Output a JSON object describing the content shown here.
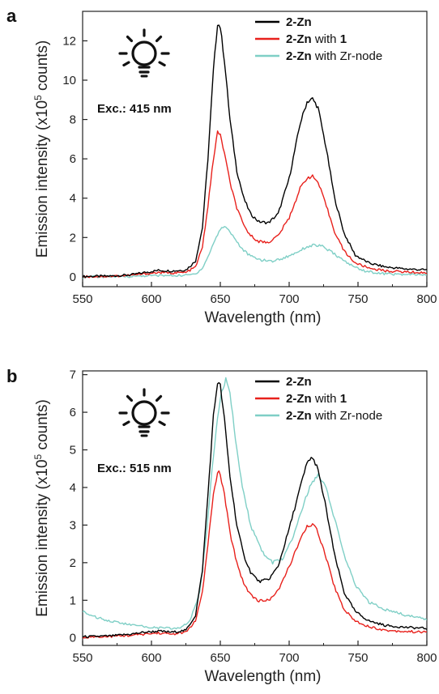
{
  "chart_data": [
    {
      "panel": "a",
      "type": "line",
      "annotation": "Exc.: 415 nm",
      "icon": "light-bulb-icon",
      "xlabel": "Wavelength (nm)",
      "ylabel_prefix": "Emission intensity (x10",
      "ylabel_sup": "5",
      "ylabel_suffix": " counts)",
      "xlim": [
        550,
        800
      ],
      "ylim": [
        -0.5,
        13.5
      ],
      "xticks": [
        550,
        600,
        650,
        700,
        750,
        800
      ],
      "yticks": [
        0,
        2,
        4,
        6,
        8,
        10,
        12
      ],
      "legend_position": "top-right",
      "series": [
        {
          "label_bold": "2-Zn",
          "label_rest": "",
          "label_bold2": "",
          "color": "#000000",
          "points": [
            [
              550,
              0.02
            ],
            [
              570,
              0.04
            ],
            [
              585,
              0.1
            ],
            [
              595,
              0.22
            ],
            [
              605,
              0.33
            ],
            [
              615,
              0.3
            ],
            [
              625,
              0.35
            ],
            [
              632,
              0.8
            ],
            [
              637,
              2.5
            ],
            [
              641,
              6.0
            ],
            [
              645,
              10.5
            ],
            [
              648,
              12.9
            ],
            [
              650,
              12.7
            ],
            [
              653,
              11.0
            ],
            [
              657,
              8.0
            ],
            [
              662,
              5.4
            ],
            [
              667,
              4.0
            ],
            [
              672,
              3.2
            ],
            [
              678,
              2.8
            ],
            [
              685,
              2.75
            ],
            [
              692,
              3.2
            ],
            [
              700,
              5.0
            ],
            [
              708,
              7.8
            ],
            [
              713,
              8.9
            ],
            [
              717,
              9.05
            ],
            [
              721,
              8.6
            ],
            [
              727,
              6.5
            ],
            [
              733,
              4.0
            ],
            [
              740,
              2.2
            ],
            [
              748,
              1.1
            ],
            [
              758,
              0.7
            ],
            [
              770,
              0.5
            ],
            [
              785,
              0.4
            ],
            [
              800,
              0.35
            ]
          ]
        },
        {
          "label_bold": "2-Zn",
          "label_rest": " with ",
          "label_bold2": "1",
          "color": "#e8211c",
          "points": [
            [
              550,
              0.01
            ],
            [
              570,
              0.03
            ],
            [
              585,
              0.08
            ],
            [
              595,
              0.15
            ],
            [
              605,
              0.22
            ],
            [
              615,
              0.2
            ],
            [
              625,
              0.22
            ],
            [
              632,
              0.5
            ],
            [
              637,
              1.5
            ],
            [
              641,
              3.6
            ],
            [
              645,
              6.0
            ],
            [
              648,
              7.35
            ],
            [
              650,
              7.2
            ],
            [
              653,
              6.3
            ],
            [
              657,
              4.8
            ],
            [
              662,
              3.5
            ],
            [
              667,
              2.6
            ],
            [
              672,
              2.1
            ],
            [
              678,
              1.8
            ],
            [
              685,
              1.75
            ],
            [
              692,
              2.1
            ],
            [
              700,
              3.0
            ],
            [
              708,
              4.5
            ],
            [
              713,
              5.05
            ],
            [
              717,
              5.1
            ],
            [
              721,
              4.8
            ],
            [
              727,
              3.6
            ],
            [
              733,
              2.3
            ],
            [
              740,
              1.3
            ],
            [
              748,
              0.7
            ],
            [
              758,
              0.45
            ],
            [
              770,
              0.3
            ],
            [
              785,
              0.25
            ],
            [
              800,
              0.2
            ]
          ]
        },
        {
          "label_bold": "2-Zn",
          "label_rest": " with Zr-node",
          "label_bold2": "",
          "color": "#7fcfc6",
          "points": [
            [
              550,
              0.0
            ],
            [
              570,
              0.01
            ],
            [
              585,
              0.02
            ],
            [
              595,
              0.05
            ],
            [
              605,
              0.07
            ],
            [
              615,
              0.06
            ],
            [
              625,
              0.08
            ],
            [
              632,
              0.15
            ],
            [
              637,
              0.45
            ],
            [
              641,
              1.0
            ],
            [
              645,
              1.7
            ],
            [
              649,
              2.3
            ],
            [
              652,
              2.55
            ],
            [
              655,
              2.5
            ],
            [
              660,
              2.0
            ],
            [
              666,
              1.4
            ],
            [
              672,
              1.05
            ],
            [
              680,
              0.85
            ],
            [
              688,
              0.8
            ],
            [
              696,
              0.95
            ],
            [
              704,
              1.2
            ],
            [
              712,
              1.5
            ],
            [
              718,
              1.62
            ],
            [
              724,
              1.55
            ],
            [
              731,
              1.25
            ],
            [
              738,
              0.9
            ],
            [
              746,
              0.55
            ],
            [
              755,
              0.3
            ],
            [
              765,
              0.18
            ],
            [
              780,
              0.12
            ],
            [
              800,
              0.1
            ]
          ]
        }
      ]
    },
    {
      "panel": "b",
      "type": "line",
      "annotation": "Exc.: 515 nm",
      "icon": "light-bulb-icon",
      "xlabel": "Wavelength (nm)",
      "ylabel_prefix": "Emission intensity (x10",
      "ylabel_sup": "5",
      "ylabel_suffix": " counts)",
      "xlim": [
        550,
        800
      ],
      "ylim": [
        -0.2,
        7.1
      ],
      "xticks": [
        550,
        600,
        650,
        700,
        750,
        800
      ],
      "yticks": [
        0,
        1,
        2,
        3,
        4,
        5,
        6,
        7
      ],
      "legend_position": "top-right",
      "series": [
        {
          "label_bold": "2-Zn",
          "label_rest": "",
          "label_bold2": "",
          "color": "#000000",
          "points": [
            [
              550,
              0.03
            ],
            [
              570,
              0.05
            ],
            [
              585,
              0.1
            ],
            [
              595,
              0.15
            ],
            [
              605,
              0.18
            ],
            [
              615,
              0.15
            ],
            [
              625,
              0.2
            ],
            [
              632,
              0.6
            ],
            [
              637,
              1.8
            ],
            [
              641,
              3.8
            ],
            [
              645,
              5.9
            ],
            [
              648,
              6.8
            ],
            [
              650,
              6.7
            ],
            [
              653,
              5.8
            ],
            [
              657,
              4.3
            ],
            [
              662,
              3.0
            ],
            [
              667,
              2.2
            ],
            [
              672,
              1.75
            ],
            [
              678,
              1.5
            ],
            [
              685,
              1.55
            ],
            [
              692,
              1.9
            ],
            [
              700,
              2.9
            ],
            [
              708,
              4.0
            ],
            [
              713,
              4.65
            ],
            [
              716,
              4.8
            ],
            [
              720,
              4.6
            ],
            [
              726,
              3.6
            ],
            [
              733,
              2.2
            ],
            [
              740,
              1.2
            ],
            [
              748,
              0.7
            ],
            [
              758,
              0.45
            ],
            [
              770,
              0.33
            ],
            [
              785,
              0.28
            ],
            [
              800,
              0.25
            ]
          ]
        },
        {
          "label_bold": "2-Zn",
          "label_rest": " with ",
          "label_bold2": "1",
          "color": "#e8211c",
          "points": [
            [
              550,
              0.02
            ],
            [
              570,
              0.04
            ],
            [
              585,
              0.07
            ],
            [
              595,
              0.1
            ],
            [
              605,
              0.13
            ],
            [
              615,
              0.1
            ],
            [
              625,
              0.15
            ],
            [
              632,
              0.45
            ],
            [
              637,
              1.2
            ],
            [
              641,
              2.5
            ],
            [
              645,
              3.8
            ],
            [
              648,
              4.42
            ],
            [
              650,
              4.35
            ],
            [
              653,
              3.8
            ],
            [
              657,
              2.8
            ],
            [
              662,
              2.0
            ],
            [
              667,
              1.45
            ],
            [
              672,
              1.15
            ],
            [
              678,
              0.98
            ],
            [
              685,
              1.0
            ],
            [
              692,
              1.25
            ],
            [
              700,
              1.9
            ],
            [
              708,
              2.6
            ],
            [
              713,
              2.95
            ],
            [
              716,
              3.02
            ],
            [
              720,
              2.9
            ],
            [
              726,
              2.25
            ],
            [
              733,
              1.35
            ],
            [
              740,
              0.75
            ],
            [
              748,
              0.45
            ],
            [
              758,
              0.3
            ],
            [
              770,
              0.2
            ],
            [
              785,
              0.17
            ],
            [
              800,
              0.15
            ]
          ]
        },
        {
          "label_bold": "2-Zn",
          "label_rest": " with Zr-node",
          "label_bold2": "",
          "color": "#7fcfc6",
          "points": [
            [
              550,
              0.7
            ],
            [
              560,
              0.55
            ],
            [
              570,
              0.45
            ],
            [
              580,
              0.38
            ],
            [
              590,
              0.32
            ],
            [
              600,
              0.28
            ],
            [
              610,
              0.26
            ],
            [
              620,
              0.25
            ],
            [
              628,
              0.45
            ],
            [
              635,
              1.2
            ],
            [
              640,
              2.8
            ],
            [
              644,
              4.5
            ],
            [
              648,
              5.9
            ],
            [
              651,
              6.6
            ],
            [
              654,
              6.85
            ],
            [
              657,
              6.5
            ],
            [
              661,
              5.3
            ],
            [
              666,
              4.0
            ],
            [
              672,
              3.0
            ],
            [
              680,
              2.3
            ],
            [
              688,
              2.0
            ],
            [
              695,
              2.1
            ],
            [
              702,
              2.6
            ],
            [
              710,
              3.5
            ],
            [
              716,
              4.1
            ],
            [
              721,
              4.35
            ],
            [
              726,
              4.1
            ],
            [
              732,
              3.3
            ],
            [
              740,
              2.2
            ],
            [
              748,
              1.4
            ],
            [
              758,
              0.95
            ],
            [
              770,
              0.75
            ],
            [
              785,
              0.6
            ],
            [
              800,
              0.5
            ]
          ]
        }
      ]
    }
  ]
}
